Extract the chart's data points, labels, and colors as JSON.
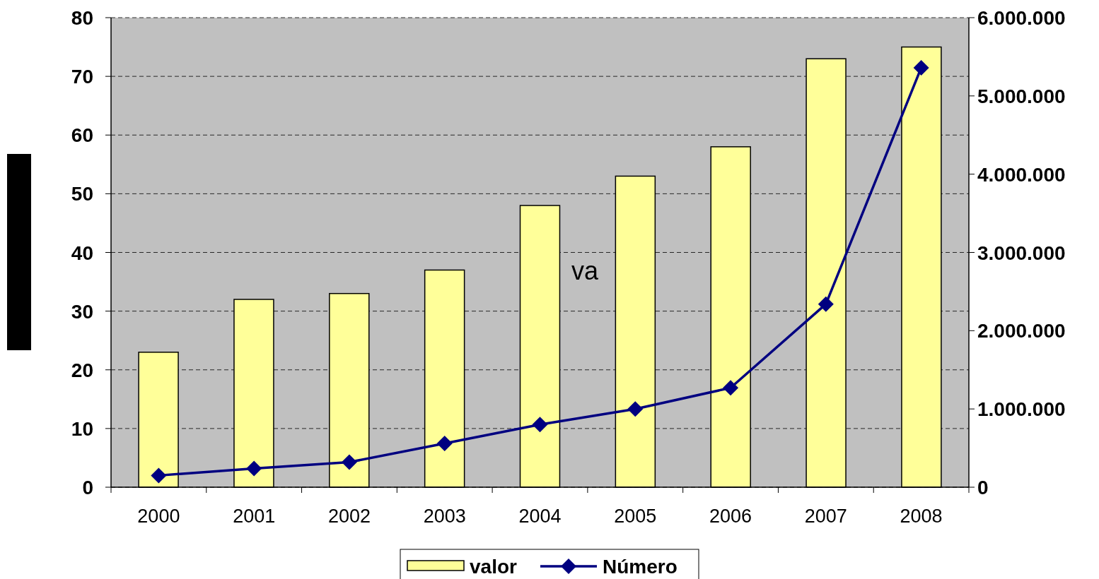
{
  "chart_data": {
    "type": "bar",
    "categories": [
      "2000",
      "2001",
      "2002",
      "2003",
      "2004",
      "2005",
      "2006",
      "2007",
      "2008"
    ],
    "series": [
      {
        "name": "valor",
        "color": "#ffff99",
        "values": [
          23,
          32,
          33,
          37,
          48,
          53,
          58,
          73,
          75
        ]
      },
      {
        "name": "Número",
        "type": "line",
        "axis": "y2",
        "color": "#000080",
        "values": [
          150000,
          240000,
          320000,
          560000,
          800000,
          1000000,
          1270000,
          2340000,
          5360000
        ]
      }
    ],
    "ylim": [
      0,
      80
    ],
    "yticks": [
      0,
      10,
      20,
      30,
      40,
      50,
      60,
      70,
      80
    ],
    "y2lim": [
      0,
      6000000
    ],
    "y2ticks": [
      0,
      {
        "value": 1000000,
        "label": "1.000.000"
      },
      {
        "value": 2000000,
        "label": "2.000.000"
      },
      {
        "value": 3000000,
        "label": "3.000.000"
      },
      {
        "value": 4000000,
        "label": "4.000.000"
      },
      {
        "value": 5000000,
        "label": "5.000.000"
      },
      {
        "value": 6000000,
        "label": "6.000.000"
      }
    ],
    "grid": "y",
    "legend": "bottom",
    "marker": "diamond",
    "line_style": "solid",
    "annotations": [
      "va"
    ]
  }
}
